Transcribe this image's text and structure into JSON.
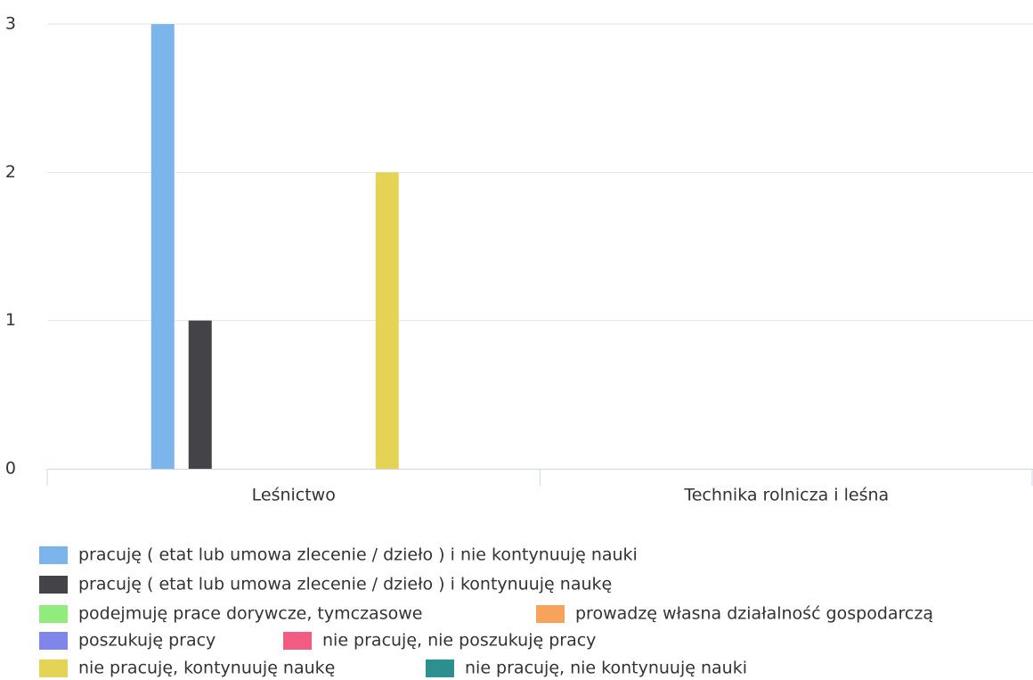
{
  "chart_data": {
    "type": "bar",
    "categories": [
      "Leśnictwo",
      "Technika rolnicza i leśna"
    ],
    "series": [
      {
        "name": "pracuję ( etat lub umowa zlecenie / dzieło ) i nie kontynuuję nauki",
        "color": "#7cb5ec",
        "values": [
          3,
          0
        ]
      },
      {
        "name": "pracuję ( etat lub umowa zlecenie / dzieło ) i kontynuuję naukę",
        "color": "#434348",
        "values": [
          1,
          0
        ]
      },
      {
        "name": "podejmuję prace dorywcze, tymczasowe",
        "color": "#90ed7d",
        "values": [
          0,
          0
        ]
      },
      {
        "name": "prowadzę własna działalność gospodarczą",
        "color": "#f7a35c",
        "values": [
          0,
          0
        ]
      },
      {
        "name": "poszukuję pracy",
        "color": "#8085e9",
        "values": [
          0,
          0
        ]
      },
      {
        "name": "nie pracuję, nie poszukuję pracy",
        "color": "#f15c80",
        "values": [
          0,
          0
        ]
      },
      {
        "name": "nie pracuję, kontynuuję naukę",
        "color": "#e4d354",
        "values": [
          2,
          0
        ]
      },
      {
        "name": "nie pracuję, nie kontynuuję nauki",
        "color": "#2b908f",
        "values": [
          0,
          0
        ]
      }
    ],
    "ylim": [
      0,
      3
    ],
    "yticks": [
      0,
      1,
      2,
      3
    ],
    "grid": true
  }
}
